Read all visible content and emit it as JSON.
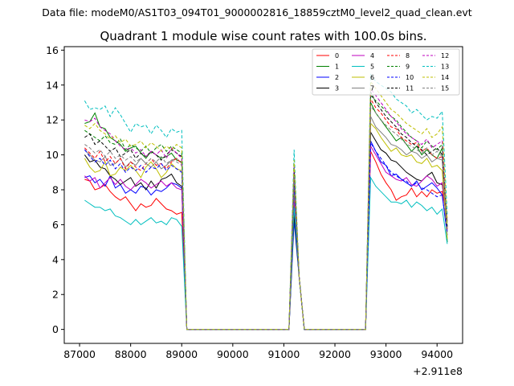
{
  "suptitle": "Data file: modeM0/AS1T03_094T01_9000002816_18859cztM0_level2_quad_clean.evt",
  "chart_data": {
    "type": "line",
    "title": "Quadrant 1 module wise count rates with 100.0s bins.",
    "xlabel": "",
    "ylabel": "",
    "x_offset_label": "+2.911e8",
    "xlim": [
      86700,
      94500
    ],
    "ylim": [
      -0.8,
      16.2
    ],
    "xticks": [
      87000,
      88000,
      89000,
      90000,
      91000,
      92000,
      93000,
      94000
    ],
    "yticks": [
      0,
      2,
      4,
      6,
      8,
      10,
      12,
      14,
      16
    ],
    "xtick_labels": [
      "87000",
      "88000",
      "89000",
      "90000",
      "91000",
      "92000",
      "93000",
      "94000"
    ],
    "ytick_labels": [
      "0",
      "2",
      "4",
      "6",
      "8",
      "10",
      "12",
      "14",
      "16"
    ],
    "grid": false,
    "legend_position": "top-right",
    "legend_columns": 4,
    "x_segments": [
      {
        "start": 87100,
        "end": 89000,
        "step": 100
      },
      {
        "x": [
          89100,
          89200,
          89300,
          89400,
          89500,
          89600,
          89700,
          89800,
          89900,
          90000,
          90100,
          90200,
          90300,
          90400,
          90500,
          90600,
          90700,
          90800,
          90900,
          91000,
          91100,
          91200,
          91300,
          91400,
          91500,
          91600,
          91700,
          91800,
          91900,
          92000,
          92100,
          92200,
          92300,
          92400,
          92500,
          92600
        ]
      },
      {
        "start": 92700,
        "end": 94200,
        "step": 100
      }
    ],
    "gap_values": [
      0,
      0,
      0,
      0,
      0,
      0,
      0,
      0,
      0,
      0,
      0,
      0,
      0,
      0,
      0,
      0,
      0,
      0,
      0,
      0,
      0,
      "peak",
      3.0,
      0,
      0,
      0,
      0,
      0,
      0,
      0,
      0,
      0,
      0,
      0,
      0,
      0
    ],
    "series": [
      {
        "name": "0",
        "color": "#ff0000",
        "dash": "solid",
        "first": [
          8.6,
          8.5,
          8.0,
          8.1,
          8.3,
          7.9,
          7.6,
          7.4,
          7.6,
          7.2,
          6.8,
          7.2,
          7.0,
          7.1,
          7.5,
          7.2,
          6.9,
          6.8,
          6.6,
          6.7
        ],
        "peak": 7.8,
        "third": [
          10.2,
          9.6,
          8.9,
          8.4,
          8.0,
          7.4,
          7.6,
          7.7,
          8.1,
          7.6,
          7.9,
          7.6,
          8.0,
          7.8,
          7.9,
          6.4
        ]
      },
      {
        "name": "1",
        "color": "#008000",
        "dash": "solid",
        "first": [
          11.8,
          11.9,
          12.4,
          11.6,
          11.5,
          11.0,
          10.8,
          10.6,
          10.2,
          10.4,
          10.5,
          10.1,
          9.8,
          10.2,
          10.0,
          9.8,
          9.9,
          10.1,
          9.7,
          9.6
        ],
        "peak": 9.3,
        "third": [
          13.0,
          12.4,
          12.0,
          11.6,
          11.2,
          10.8,
          11.0,
          10.6,
          10.2,
          10.5,
          10.0,
          10.3,
          10.0,
          9.8,
          10.4,
          5.0
        ]
      },
      {
        "name": "2",
        "color": "#0000ff",
        "dash": "solid",
        "first": [
          8.7,
          8.8,
          8.4,
          8.6,
          8.2,
          8.8,
          8.1,
          8.3,
          7.8,
          8.0,
          7.8,
          8.2,
          8.1,
          7.7,
          8.0,
          7.9,
          8.1,
          8.4,
          8.3,
          8.1
        ],
        "peak": 6.2,
        "third": [
          10.8,
          10.2,
          9.6,
          9.4,
          8.8,
          8.9,
          8.6,
          8.4,
          8.2,
          8.5,
          8.0,
          8.2,
          8.4,
          8.1,
          7.7,
          5.4
        ]
      },
      {
        "name": "3",
        "color": "#000000",
        "dash": "solid",
        "first": [
          10.0,
          9.6,
          9.7,
          9.3,
          9.2,
          8.8,
          8.6,
          8.3,
          8.5,
          8.7,
          8.2,
          8.4,
          8.0,
          8.5,
          8.1,
          8.6,
          8.7,
          8.9,
          8.4,
          8.2
        ],
        "peak": 6.6,
        "third": [
          11.3,
          10.8,
          10.3,
          10.1,
          9.7,
          9.6,
          9.3,
          9.0,
          8.8,
          8.6,
          8.5,
          8.8,
          9.0,
          8.4,
          8.3,
          6.2
        ]
      },
      {
        "name": "4",
        "color": "#bf00bf",
        "dash": "solid",
        "first": [
          8.8,
          8.5,
          8.7,
          8.1,
          8.4,
          8.7,
          8.3,
          8.6,
          8.2,
          8.0,
          8.3,
          8.6,
          8.4,
          8.1,
          8.3,
          8.5,
          8.2,
          8.4,
          8.1,
          8.0
        ],
        "peak": 7.4,
        "third": [
          10.5,
          10.0,
          9.5,
          9.0,
          8.8,
          8.6,
          8.5,
          8.7,
          8.3,
          8.2,
          8.5,
          8.8,
          8.6,
          8.2,
          8.4,
          5.8
        ]
      },
      {
        "name": "5",
        "color": "#00bfbf",
        "dash": "solid",
        "first": [
          7.4,
          7.2,
          7.0,
          7.0,
          6.8,
          6.9,
          6.5,
          6.4,
          6.2,
          6.0,
          6.3,
          6.0,
          6.2,
          6.4,
          6.1,
          6.2,
          6.0,
          6.4,
          6.3,
          5.9
        ],
        "peak": 7.0,
        "third": [
          8.7,
          8.2,
          7.9,
          7.6,
          7.3,
          7.3,
          7.2,
          7.4,
          7.0,
          7.3,
          7.1,
          6.8,
          7.0,
          6.6,
          6.9,
          4.9
        ]
      },
      {
        "name": "6",
        "color": "#bfbf00",
        "dash": "solid",
        "first": [
          9.8,
          9.3,
          9.0,
          9.1,
          9.6,
          8.8,
          8.9,
          9.3,
          9.1,
          9.4,
          9.1,
          8.7,
          9.3,
          9.6,
          9.2,
          8.7,
          9.0,
          9.5,
          9.2,
          9.1
        ],
        "peak": 8.2,
        "third": [
          11.8,
          11.5,
          11.0,
          10.6,
          10.2,
          10.4,
          10.0,
          9.9,
          10.0,
          9.6,
          9.5,
          9.8,
          9.3,
          9.4,
          9.1,
          5.2
        ]
      },
      {
        "name": "7",
        "color": "#808080",
        "dash": "solid",
        "first": [
          10.3,
          10.0,
          9.7,
          9.6,
          9.9,
          9.4,
          9.5,
          9.8,
          9.3,
          9.6,
          9.4,
          9.8,
          9.5,
          9.3,
          9.6,
          9.2,
          9.4,
          9.7,
          9.8,
          9.5
        ],
        "peak": 8.0,
        "third": [
          12.2,
          11.6,
          11.3,
          11.0,
          10.6,
          10.5,
          10.3,
          10.0,
          10.2,
          10.1,
          9.8,
          10.0,
          9.6,
          9.8,
          9.7,
          5.6
        ]
      },
      {
        "name": "8",
        "color": "#ff0000",
        "dash": "dashed",
        "first": [
          10.4,
          10.1,
          9.8,
          10.2,
          9.6,
          9.9,
          9.5,
          9.8,
          9.2,
          9.6,
          9.3,
          9.1,
          9.5,
          9.8,
          9.4,
          9.5,
          9.2,
          9.6,
          9.8,
          9.5
        ],
        "peak": 8.6,
        "third": [
          13.2,
          12.7,
          12.4,
          12.0,
          11.6,
          11.5,
          11.0,
          10.8,
          10.6,
          10.7,
          10.2,
          10.4,
          10.0,
          9.8,
          9.9,
          5.7
        ]
      },
      {
        "name": "9",
        "color": "#008000",
        "dash": "dashed",
        "first": [
          11.4,
          11.2,
          11.0,
          10.8,
          11.1,
          10.7,
          10.6,
          10.9,
          10.3,
          10.6,
          10.4,
          10.2,
          10.5,
          10.1,
          10.4,
          10.6,
          10.2,
          10.5,
          10.3,
          10.1
        ],
        "peak": 9.0,
        "third": [
          13.4,
          13.1,
          12.8,
          12.5,
          12.2,
          12.0,
          11.6,
          11.3,
          11.0,
          10.8,
          10.4,
          10.8,
          10.5,
          10.3,
          10.6,
          5.8
        ]
      },
      {
        "name": "10",
        "color": "#0000ff",
        "dash": "dashed",
        "first": [
          10.3,
          9.9,
          9.6,
          9.8,
          9.4,
          9.7,
          9.2,
          9.5,
          9.0,
          9.3,
          9.1,
          9.4,
          9.0,
          9.3,
          9.2,
          9.5,
          9.1,
          9.4,
          9.2,
          9.0
        ],
        "peak": 8.4,
        "third": [
          10.7,
          10.2,
          9.8,
          9.4,
          9.0,
          8.8,
          8.6,
          8.5,
          8.2,
          8.4,
          8.1,
          8.0,
          7.8,
          7.6,
          7.7,
          5.5
        ]
      },
      {
        "name": "11",
        "color": "#000000",
        "dash": "dashed",
        "first": [
          11.0,
          11.2,
          10.6,
          10.8,
          10.5,
          10.2,
          10.4,
          9.9,
          10.1,
          10.3,
          9.8,
          10.1,
          9.9,
          10.2,
          10.0,
          9.7,
          10.0,
          10.3,
          10.1,
          9.9
        ],
        "peak": 9.1,
        "third": [
          13.6,
          13.0,
          12.6,
          12.2,
          11.9,
          11.6,
          11.2,
          11.0,
          10.7,
          10.5,
          10.3,
          10.0,
          10.2,
          10.4,
          10.0,
          5.9
        ]
      },
      {
        "name": "12",
        "color": "#bf00bf",
        "dash": "dashed",
        "first": [
          12.0,
          11.9,
          12.1,
          11.6,
          11.4,
          11.2,
          10.8,
          10.5,
          10.3,
          10.4,
          10.1,
          10.3,
          9.9,
          10.2,
          10.0,
          10.3,
          9.8,
          10.4,
          10.1,
          9.8
        ],
        "peak": 9.5,
        "third": [
          13.8,
          13.4,
          13.0,
          12.6,
          12.2,
          11.9,
          11.5,
          11.2,
          11.0,
          10.8,
          10.6,
          10.9,
          10.4,
          10.6,
          10.8,
          6.0
        ]
      },
      {
        "name": "13",
        "color": "#00bfbf",
        "dash": "dashed",
        "first": [
          13.1,
          12.6,
          12.7,
          12.6,
          12.8,
          12.2,
          12.7,
          12.3,
          11.8,
          11.3,
          11.8,
          11.6,
          11.7,
          11.2,
          11.7,
          11.4,
          11.0,
          11.5,
          11.3,
          11.4
        ],
        "peak": 10.3,
        "third": [
          14.6,
          14.2,
          14.0,
          13.8,
          13.6,
          13.2,
          13.0,
          12.8,
          12.4,
          12.6,
          12.3,
          12.0,
          12.2,
          12.1,
          12.5,
          6.6
        ]
      },
      {
        "name": "14",
        "color": "#bfbf00",
        "dash": "dashed",
        "first": [
          11.7,
          11.5,
          11.8,
          11.4,
          11.2,
          10.9,
          11.1,
          10.7,
          10.9,
          10.5,
          10.6,
          10.8,
          10.4,
          10.7,
          10.5,
          10.2,
          10.5,
          10.3,
          10.6,
          10.4
        ],
        "peak": 9.7,
        "third": [
          14.2,
          13.8,
          13.4,
          13.0,
          12.6,
          12.4,
          12.1,
          11.8,
          11.6,
          11.4,
          11.2,
          11.5,
          11.0,
          11.2,
          11.6,
          6.1
        ]
      },
      {
        "name": "15",
        "color": "#808080",
        "dash": "dashed",
        "first": [
          10.6,
          10.4,
          10.1,
          10.3,
          9.9,
          10.2,
          9.8,
          10.0,
          9.7,
          9.9,
          9.6,
          9.8,
          9.5,
          9.8,
          9.6,
          9.9,
          9.5,
          9.7,
          9.6,
          9.4
        ],
        "peak": 8.8,
        "third": [
          12.8,
          12.4,
          12.0,
          11.7,
          11.4,
          11.2,
          10.9,
          10.6,
          10.5,
          10.3,
          10.1,
          10.4,
          10.0,
          10.2,
          9.9,
          5.6
        ]
      }
    ]
  }
}
